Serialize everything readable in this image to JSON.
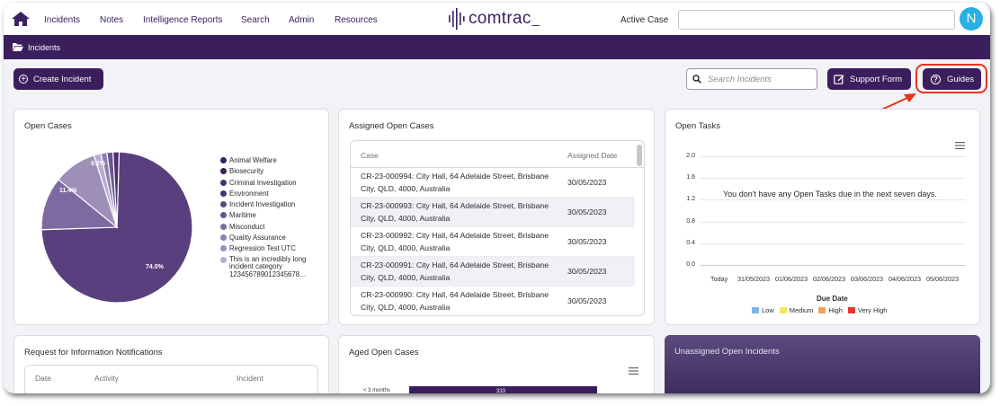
{
  "nav": {
    "items": [
      {
        "label": "Incidents"
      },
      {
        "label": "Notes"
      },
      {
        "label": "Intelligence Reports"
      },
      {
        "label": "Search"
      },
      {
        "label": "Admin"
      },
      {
        "label": "Resources"
      }
    ],
    "logo_text": "comtrac",
    "active_case_label": "Active Case",
    "active_case_value": "",
    "avatar_initial": "N",
    "colors": {
      "brand": "#3a1f5c",
      "avatar": "#26b0e4",
      "highlight": "#e8331c"
    }
  },
  "breadcrumb": {
    "label": "Incidents",
    "icon": "folder-open-icon"
  },
  "toolbar": {
    "create_label": "Create Incident",
    "search_placeholder": "Search Incidents",
    "support_label": "Support Form",
    "guides_label": "Guides"
  },
  "open_cases": {
    "title": "Open Cases",
    "slice_labels": [
      "74.0%",
      "11.4%",
      "9.2%"
    ],
    "legend": [
      {
        "label": "Animal Welfare",
        "color": "#3a1f5c"
      },
      {
        "label": "Biosecurity",
        "color": "#3a1f5c"
      },
      {
        "label": "Criminal Investigation",
        "color": "#4a2f6e"
      },
      {
        "label": "Environment",
        "color": "#4a2f6e"
      },
      {
        "label": "Incident Investigation",
        "color": "#5c4580"
      },
      {
        "label": "Maritime",
        "color": "#6a5490"
      },
      {
        "label": "Misconduct",
        "color": "#7e6aa0"
      },
      {
        "label": "Quality Assurance",
        "color": "#8f7db0"
      },
      {
        "label": "Regression Test UTC",
        "color": "#9e8fbb"
      },
      {
        "label": "This is an incredibly long incident category 123456789012345678…",
        "color": "#b8acd0"
      }
    ]
  },
  "chart_data": {
    "type": "pie",
    "title": "Open Cases",
    "slices": [
      {
        "label": "74.0%",
        "value": 74.0,
        "color": "#5a3f7e"
      },
      {
        "label": "11.4%",
        "value": 11.4,
        "color": "#7e6aa0"
      },
      {
        "label": "9.2%",
        "value": 9.2,
        "color": "#9d8fb8"
      },
      {
        "label": "",
        "value": 1.5,
        "color": "#b8acd0"
      },
      {
        "label": "",
        "value": 1.3,
        "color": "#8f7db0"
      },
      {
        "label": "",
        "value": 1.3,
        "color": "#6a5490"
      },
      {
        "label": "",
        "value": 1.3,
        "color": "#4a2f6e"
      }
    ]
  },
  "assigned": {
    "title": "Assigned Open Cases",
    "col_case": "Case",
    "col_date": "Assigned Date",
    "rows": [
      {
        "case": "CR-23-000994: City Hall, 64 Adelaide Street, Brisbane City, QLD, 4000, Australia",
        "date": "30/05/2023"
      },
      {
        "case": "CR-23-000993: City Hall, 64 Adelaide Street, Brisbane City, QLD, 4000, Australia",
        "date": "30/05/2023"
      },
      {
        "case": "CR-23-000992: City Hall, 64 Adelaide Street, Brisbane City, QLD, 4000, Australia",
        "date": "30/05/2023"
      },
      {
        "case": "CR-23-000991: City Hall, 64 Adelaide Street, Brisbane City, QLD, 4000, Australia",
        "date": "30/05/2023"
      },
      {
        "case": "CR-23-000990: City Hall, 64 Adelaide Street, Brisbane City, QLD, 4000, Australia",
        "date": "30/05/2023"
      }
    ]
  },
  "open_tasks": {
    "title": "Open Tasks",
    "empty_message": "You don't have any Open Tasks due in the next seven days.",
    "y_ticks": [
      "2.0",
      "1.6",
      "1.2",
      "0.8",
      "0.4",
      "0.0"
    ],
    "x_ticks": [
      "Today",
      "31/05/2023",
      "01/06/2023",
      "02/06/2023",
      "03/06/2023",
      "04/06/2023",
      "05/06/2023"
    ],
    "x_title": "Due Date",
    "legend": [
      {
        "label": "Low",
        "color": "#7cb5ec"
      },
      {
        "label": "Medium",
        "color": "#f7e463"
      },
      {
        "label": "High",
        "color": "#f4a05a"
      },
      {
        "label": "Very High",
        "color": "#e8362a"
      }
    ]
  },
  "rfi": {
    "title": "Request for Information Notifications",
    "col_date": "Date",
    "col_activity": "Activity",
    "col_incident": "Incident"
  },
  "aged": {
    "title": "Aged Open Cases",
    "y_first": "< 3 months",
    "bar_value": "333"
  },
  "unassigned": {
    "title": "Unassigned Open Incidents"
  }
}
